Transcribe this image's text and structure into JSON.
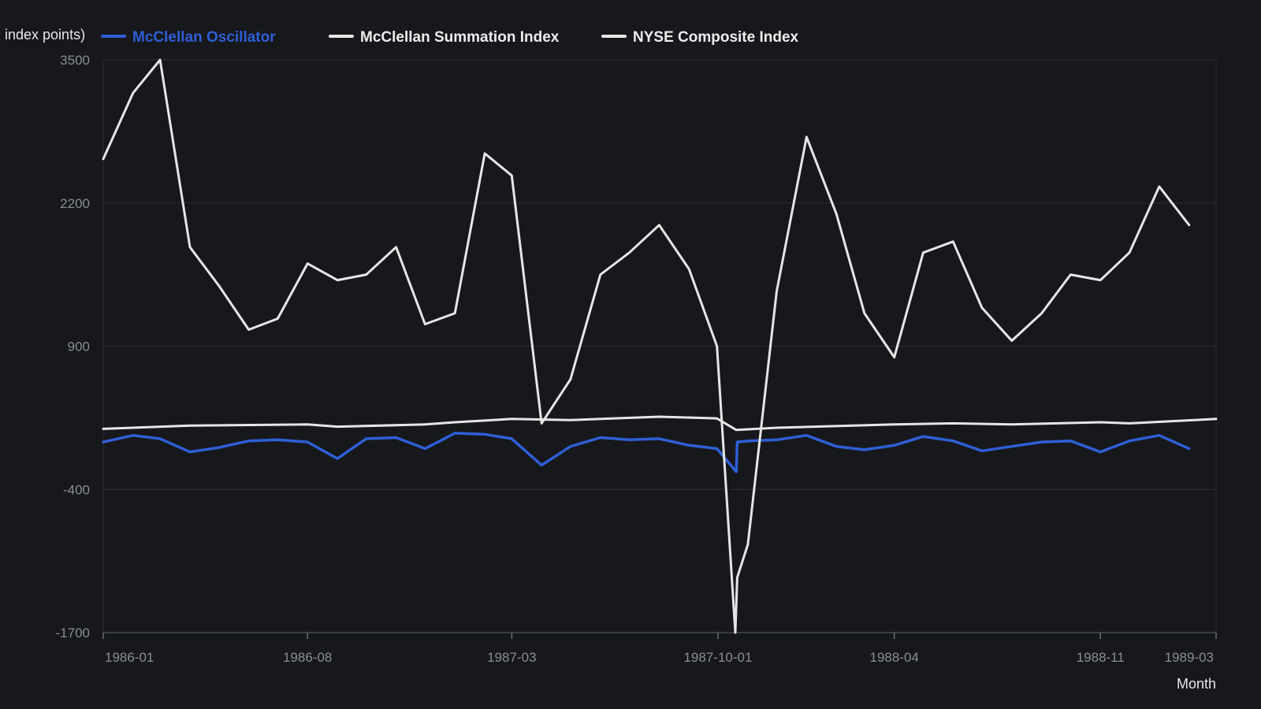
{
  "chart_data": {
    "type": "line",
    "title": "",
    "xlabel": "Month",
    "ylabel": "index points)",
    "ylim": [
      -1700,
      3500
    ],
    "yticks": [
      -1700,
      -400,
      900,
      2200,
      3500
    ],
    "xtick_labels": [
      "1986-01",
      "1986-08",
      "1987-03",
      "1987-10-01",
      "1988-04",
      "1988-11",
      "1989-03"
    ],
    "xtick_dates": [
      "1986-01-01",
      "1986-08-01",
      "1987-03-01",
      "1987-10-01",
      "1988-04-01",
      "1988-11-01",
      "1989-03-01"
    ],
    "x_range": [
      "1986-01-01",
      "1989-03-01"
    ],
    "grid": true,
    "legend_position": "top",
    "series": [
      {
        "name": "McClellan Oscillator",
        "color": "#2f5fd6",
        "x": [
          "1986-01-01",
          "1986-02-01",
          "1986-03-01",
          "1986-04-01",
          "1986-05-01",
          "1986-06-01",
          "1986-07-01",
          "1986-08-01",
          "1986-09-01",
          "1986-10-01",
          "1986-11-01",
          "1986-12-01",
          "1987-01-01",
          "1987-02-01",
          "1987-03-01",
          "1987-04-01",
          "1987-05-01",
          "1987-06-01",
          "1987-07-01",
          "1987-08-01",
          "1987-09-01",
          "1987-09-30",
          "1987-10-20",
          "1987-10-21",
          "1987-11-01",
          "1987-12-01",
          "1988-01-01",
          "1988-02-01",
          "1988-03-01",
          "1988-04-01",
          "1988-05-01",
          "1988-06-01",
          "1988-07-01",
          "1988-08-01",
          "1988-09-01",
          "1988-10-01",
          "1988-11-01",
          "1988-12-01",
          "1989-01-01",
          "1989-02-01",
          "1989-03-01"
        ],
        "values": [
          30,
          90,
          60,
          -60,
          -20,
          40,
          50,
          30,
          -120,
          60,
          70,
          -30,
          110,
          100,
          60,
          -180,
          -10,
          70,
          50,
          60,
          0,
          -30,
          -240,
          30,
          40,
          50,
          90,
          -10,
          -40,
          0,
          80,
          40,
          -50,
          -10,
          30,
          40,
          -60,
          40,
          90,
          -30,
          null
        ]
      },
      {
        "name": "McClellan Summation Index",
        "color": "#e6e6e6",
        "x": [
          "1986-01-01",
          "1986-04-01",
          "1986-08-01",
          "1986-09-01",
          "1986-12-01",
          "1987-01-01",
          "1987-03-01",
          "1987-05-01",
          "1987-08-01",
          "1987-09-30",
          "1987-10-20",
          "1987-12-01",
          "1988-04-01",
          "1988-06-01",
          "1988-08-01",
          "1988-11-01",
          "1988-12-01",
          "1989-03-01"
        ],
        "values": [
          150,
          180,
          190,
          170,
          190,
          210,
          240,
          230,
          260,
          245,
          140,
          160,
          190,
          200,
          190,
          210,
          200,
          240
        ]
      },
      {
        "name": "NYSE Composite Index",
        "color": "#e6e6e6",
        "x": [
          "1986-01-01",
          "1986-02-01",
          "1986-03-01",
          "1986-04-01",
          "1986-05-01",
          "1986-06-01",
          "1986-07-01",
          "1986-08-01",
          "1986-09-01",
          "1986-10-01",
          "1986-11-01",
          "1986-12-01",
          "1987-01-01",
          "1987-02-01",
          "1987-03-01",
          "1987-04-01",
          "1987-05-01",
          "1987-06-01",
          "1987-07-01",
          "1987-08-01",
          "1987-09-01",
          "1987-09-30",
          "1987-10-19",
          "1987-10-21",
          "1987-11-01",
          "1987-12-01",
          "1988-01-01",
          "1988-02-01",
          "1988-03-01",
          "1988-04-01",
          "1988-05-01",
          "1988-06-01",
          "1988-07-01",
          "1988-08-01",
          "1988-09-01",
          "1988-10-01",
          "1988-11-01",
          "1988-12-01",
          "1989-01-01",
          "1989-02-01",
          "1989-03-01"
        ],
        "values": [
          2600,
          3200,
          3500,
          1800,
          1450,
          1050,
          1150,
          1650,
          1500,
          1550,
          1800,
          1100,
          1200,
          2650,
          2450,
          200,
          600,
          1550,
          1750,
          2000,
          1600,
          900,
          -1700,
          -1200,
          -900,
          1400,
          2800,
          2100,
          1200,
          800,
          1750,
          1850,
          1250,
          950,
          1200,
          1550,
          1500,
          1750,
          2350,
          2000,
          null
        ]
      }
    ]
  }
}
